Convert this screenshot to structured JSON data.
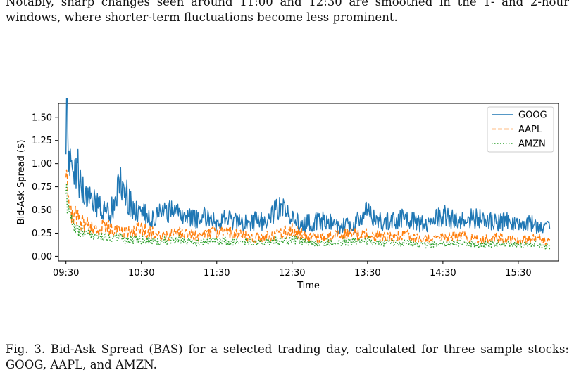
{
  "text_intro": "Notably, sharp changes seen around 11:00 and 12:30 are smoothed in the 1- and 2-hour windows, where shorter-term fluctuations become less prominent.",
  "caption": "Fig. 3. Bid-Ask Spread (BAS) for a selected trading day, calculated for three sample stocks: GOOG, AAPL, and AMZN.",
  "chart_data": {
    "type": "line",
    "title": "",
    "xlabel": "Time",
    "ylabel": "Bid-Ask Spread ($)",
    "xlim": [
      "09:24",
      "16:02"
    ],
    "ylim": [
      -0.05,
      1.65
    ],
    "x_ticks": [
      "09:30",
      "10:30",
      "11:30",
      "12:30",
      "13:30",
      "14:30",
      "15:30"
    ],
    "y_ticks": [
      "0.00",
      "0.25",
      "0.50",
      "0.75",
      "1.00",
      "1.25",
      "1.50"
    ],
    "y_tick_values": [
      0,
      0.25,
      0.5,
      0.75,
      1.0,
      1.25,
      1.5
    ],
    "grid": false,
    "legend_position": "top-right",
    "series": [
      {
        "name": "GOOG",
        "color": "#1f77b4",
        "style": "solid",
        "x": [
          "09:30",
          "09:31",
          "09:32",
          "09:35",
          "09:40",
          "09:45",
          "09:50",
          "09:55",
          "10:00",
          "10:05",
          "10:10",
          "10:15",
          "10:20",
          "10:25",
          "10:30",
          "10:40",
          "10:50",
          "11:00",
          "11:10",
          "11:20",
          "11:30",
          "11:40",
          "11:50",
          "12:00",
          "12:10",
          "12:20",
          "12:30",
          "12:40",
          "12:50",
          "13:00",
          "13:10",
          "13:20",
          "13:30",
          "13:40",
          "13:50",
          "14:00",
          "14:10",
          "14:20",
          "14:30",
          "14:40",
          "14:50",
          "15:00",
          "15:10",
          "15:20",
          "15:30",
          "15:40",
          "15:50",
          "15:55"
        ],
        "values": [
          1.45,
          1.58,
          1.0,
          0.95,
          0.9,
          0.62,
          0.58,
          0.55,
          0.5,
          0.45,
          0.65,
          0.82,
          0.6,
          0.48,
          0.45,
          0.42,
          0.5,
          0.45,
          0.4,
          0.42,
          0.38,
          0.4,
          0.35,
          0.38,
          0.37,
          0.55,
          0.4,
          0.35,
          0.38,
          0.38,
          0.32,
          0.35,
          0.48,
          0.38,
          0.4,
          0.42,
          0.36,
          0.35,
          0.45,
          0.38,
          0.4,
          0.42,
          0.36,
          0.38,
          0.34,
          0.35,
          0.3,
          0.35
        ]
      },
      {
        "name": "AAPL",
        "color": "#ff7f0e",
        "style": "dashed",
        "x": [
          "09:30",
          "09:31",
          "09:32",
          "09:35",
          "09:40",
          "09:45",
          "09:50",
          "10:00",
          "10:10",
          "10:20",
          "10:30",
          "10:45",
          "11:00",
          "11:15",
          "11:30",
          "11:45",
          "12:00",
          "12:15",
          "12:30",
          "12:45",
          "13:00",
          "13:15",
          "13:30",
          "13:45",
          "14:00",
          "14:15",
          "14:30",
          "14:45",
          "15:00",
          "15:15",
          "15:30",
          "15:45",
          "15:55"
        ],
        "values": [
          0.78,
          0.75,
          0.55,
          0.45,
          0.4,
          0.35,
          0.3,
          0.32,
          0.28,
          0.25,
          0.3,
          0.22,
          0.25,
          0.22,
          0.27,
          0.24,
          0.2,
          0.22,
          0.28,
          0.2,
          0.22,
          0.25,
          0.24,
          0.2,
          0.23,
          0.18,
          0.2,
          0.22,
          0.18,
          0.2,
          0.18,
          0.2,
          0.16
        ]
      },
      {
        "name": "AMZN",
        "color": "#2ca02c",
        "style": "dotted",
        "x": [
          "09:30",
          "09:31",
          "09:32",
          "09:35",
          "09:40",
          "09:45",
          "09:50",
          "10:00",
          "10:10",
          "10:20",
          "10:30",
          "10:45",
          "11:00",
          "11:15",
          "11:30",
          "11:45",
          "12:00",
          "12:15",
          "12:30",
          "12:45",
          "13:00",
          "13:15",
          "13:30",
          "13:45",
          "14:00",
          "14:15",
          "14:30",
          "14:45",
          "15:00",
          "15:15",
          "15:30",
          "15:45",
          "15:55"
        ],
        "values": [
          0.7,
          0.62,
          0.45,
          0.35,
          0.28,
          0.25,
          0.22,
          0.2,
          0.2,
          0.18,
          0.18,
          0.16,
          0.18,
          0.15,
          0.17,
          0.16,
          0.15,
          0.16,
          0.18,
          0.14,
          0.15,
          0.16,
          0.17,
          0.14,
          0.15,
          0.12,
          0.14,
          0.15,
          0.12,
          0.14,
          0.12,
          0.13,
          0.1
        ]
      }
    ]
  }
}
